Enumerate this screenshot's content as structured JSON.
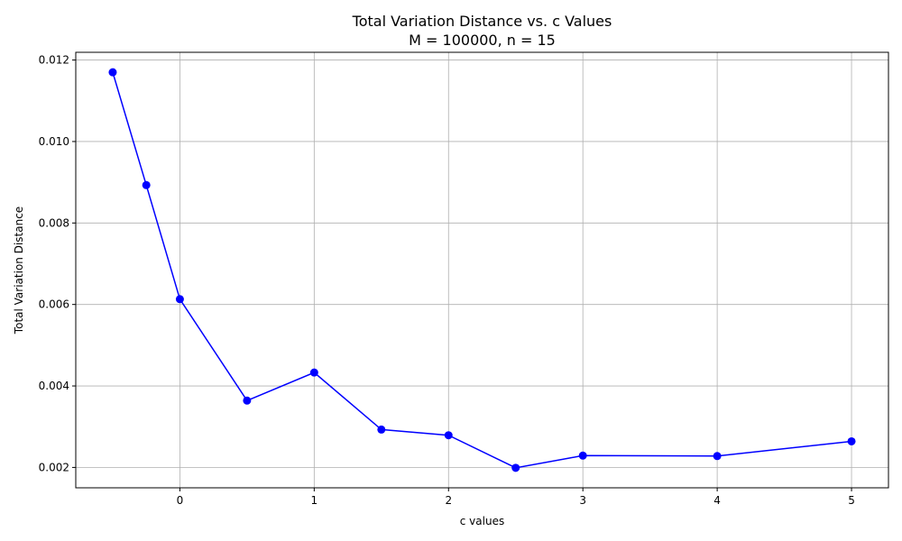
{
  "chart_data": {
    "type": "line",
    "title": "Total Variation Distance vs. c Values",
    "subtitle": "M = 100000, n = 15",
    "xlabel": "c values",
    "ylabel": "Total Variation Distance",
    "xlim": [
      -0.775,
      5.275
    ],
    "ylim": [
      0.0015,
      0.01219
    ],
    "xticks": [
      0,
      1,
      2,
      3,
      4,
      5
    ],
    "xtick_labels": [
      "0",
      "1",
      "2",
      "3",
      "4",
      "5"
    ],
    "yticks": [
      0.002,
      0.004,
      0.006,
      0.008,
      0.01,
      0.012
    ],
    "ytick_labels": [
      "0.002",
      "0.004",
      "0.006",
      "0.008",
      "0.010",
      "0.012"
    ],
    "grid": true,
    "series": [
      {
        "color": "#0000ff",
        "marker": "circle",
        "x": [
          -0.5,
          -0.25,
          0,
          0.5,
          1,
          1.5,
          2,
          2.5,
          3,
          4,
          5
        ],
        "y": [
          0.0117,
          0.00893,
          0.00613,
          0.00364,
          0.00433,
          0.00293,
          0.00279,
          0.00199,
          0.00229,
          0.00228,
          0.00264
        ]
      }
    ]
  }
}
